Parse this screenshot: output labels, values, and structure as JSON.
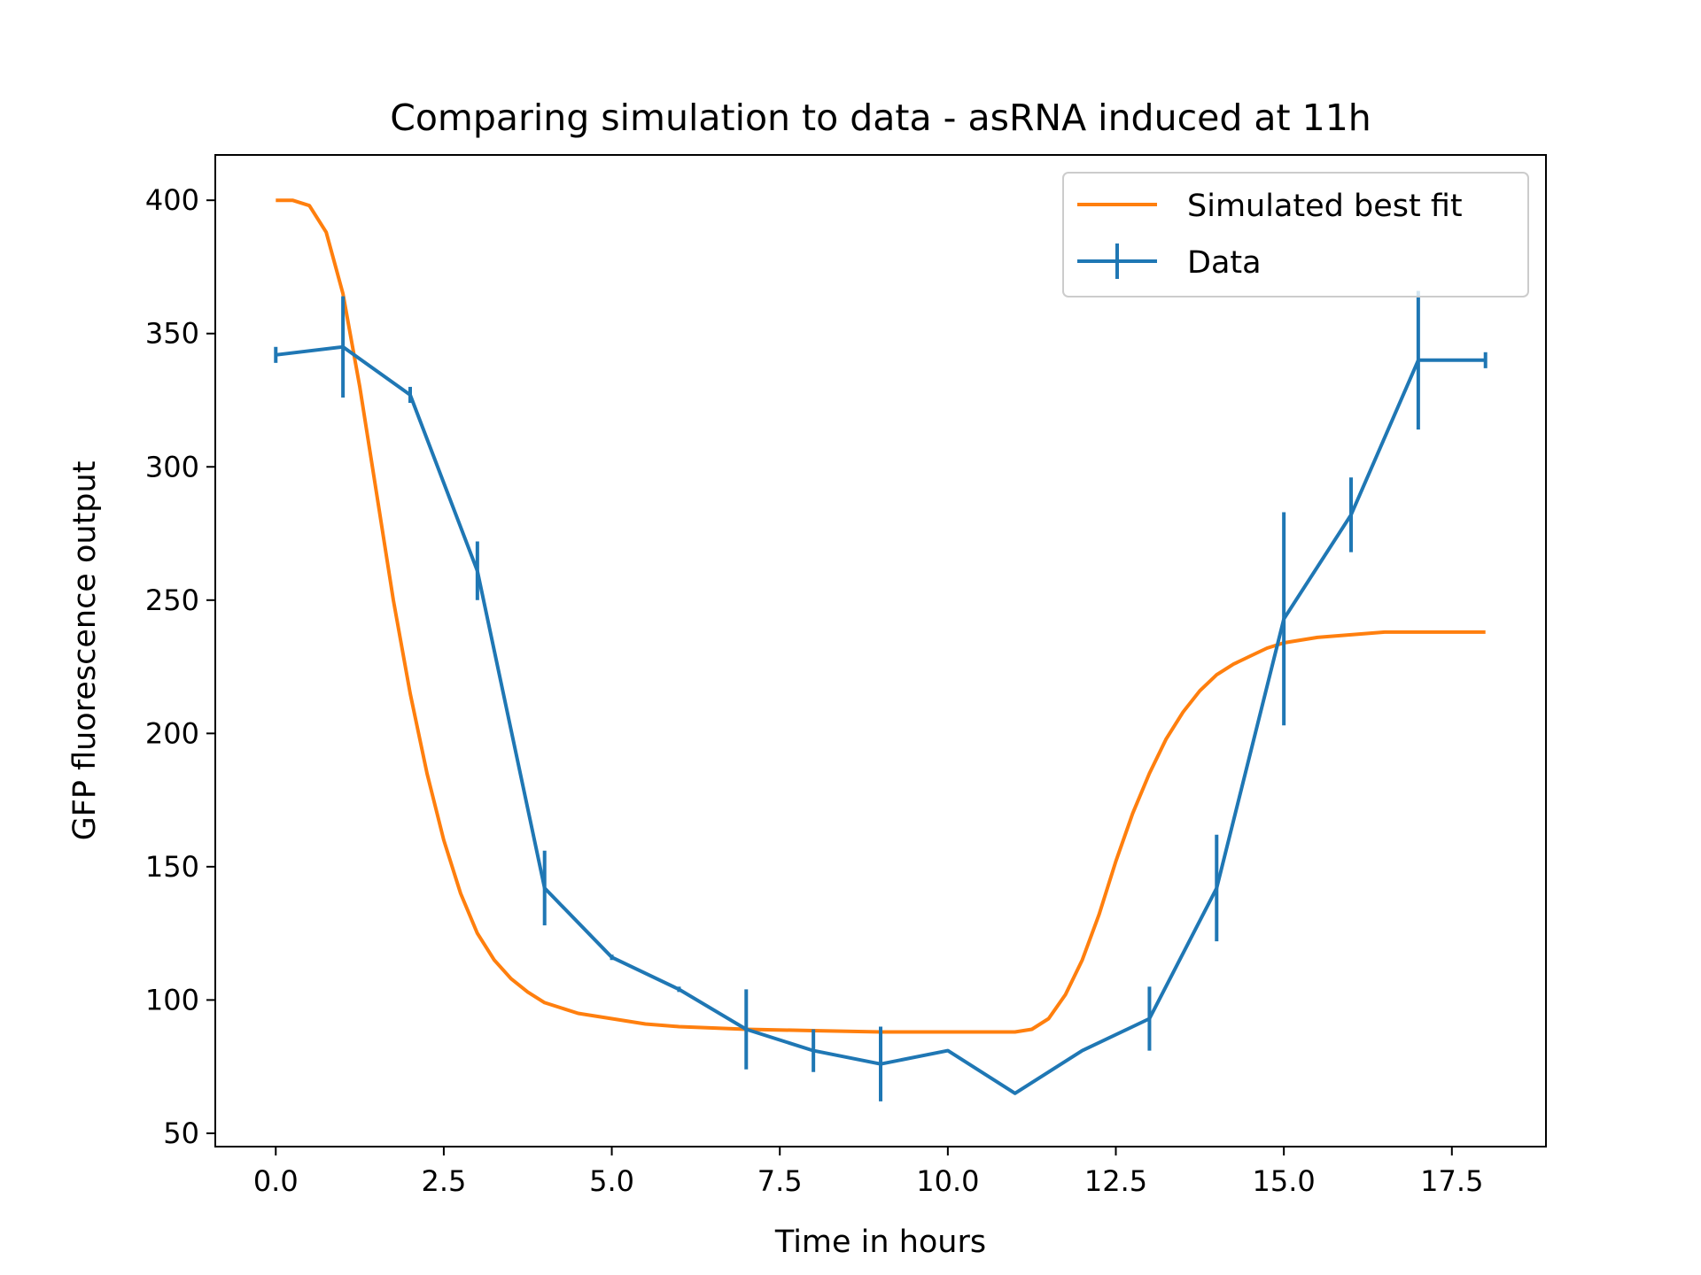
{
  "chart_data": {
    "type": "line",
    "title": "Comparing simulation to data - asRNA induced at 11h",
    "xlabel": "Time in hours",
    "ylabel": "GFP fluorescence output",
    "xlim": [
      -0.9,
      18.9
    ],
    "ylim": [
      45,
      417
    ],
    "xticks": [
      0,
      2.5,
      5,
      7.5,
      10,
      12.5,
      15,
      17.5
    ],
    "xtick_labels": [
      "0.0",
      "2.5",
      "5.0",
      "7.5",
      "10.0",
      "12.5",
      "15.0",
      "17.5"
    ],
    "yticks": [
      50,
      100,
      150,
      200,
      250,
      300,
      350,
      400
    ],
    "ytick_labels": [
      "50",
      "100",
      "150",
      "200",
      "250",
      "300",
      "350",
      "400"
    ],
    "grid": false,
    "legend_position": "top-right",
    "series": [
      {
        "name": "Simulated best fit",
        "color": "#ff7f0e",
        "style": "line",
        "x": [
          0,
          0.25,
          0.5,
          0.75,
          1,
          1.25,
          1.5,
          1.75,
          2,
          2.25,
          2.5,
          2.75,
          3,
          3.25,
          3.5,
          3.75,
          4,
          4.5,
          5,
          5.5,
          6,
          6.5,
          7,
          8,
          9,
          10,
          11,
          11.25,
          11.5,
          11.75,
          12,
          12.25,
          12.5,
          12.75,
          13,
          13.25,
          13.5,
          13.75,
          14,
          14.25,
          14.5,
          14.75,
          15,
          15.5,
          16,
          16.5,
          17,
          17.5,
          18
        ],
        "y": [
          400,
          400,
          398,
          388,
          365,
          330,
          290,
          250,
          215,
          185,
          160,
          140,
          125,
          115,
          108,
          103,
          99,
          95,
          93,
          91,
          90,
          89.5,
          89,
          88.5,
          88,
          88,
          88,
          89,
          93,
          102,
          115,
          132,
          152,
          170,
          185,
          198,
          208,
          216,
          222,
          226,
          229,
          232,
          234,
          236,
          237,
          238,
          238,
          238,
          238
        ]
      },
      {
        "name": "Data",
        "color": "#1f77b4",
        "style": "errorbar",
        "x": [
          0,
          1,
          2,
          3,
          4,
          5,
          6,
          7,
          8,
          9,
          10,
          11,
          12,
          13,
          14,
          15,
          16,
          17,
          18
        ],
        "y": [
          342,
          345,
          327,
          261,
          142,
          116,
          104,
          89,
          81,
          76,
          81,
          65,
          81,
          93,
          142,
          243,
          282,
          340,
          340
        ],
        "yerr": [
          3,
          19,
          3,
          11,
          14,
          1,
          1,
          15,
          8,
          14,
          0,
          0,
          0,
          12,
          20,
          40,
          14,
          26,
          3
        ]
      }
    ]
  }
}
